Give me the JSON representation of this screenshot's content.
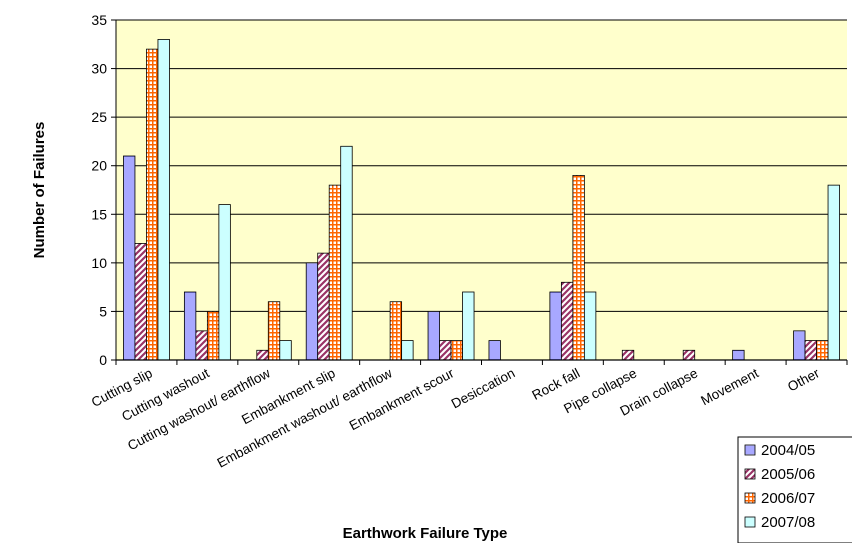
{
  "chart_data": {
    "type": "bar",
    "title": "",
    "xlabel": "Earthwork Failure Type",
    "ylabel": "Number of Failures",
    "ylim": [
      0,
      35
    ],
    "yticks": [
      0,
      5,
      10,
      15,
      20,
      25,
      30,
      35
    ],
    "grid": true,
    "legend_position": "bottom-right",
    "plot_background": "#ffffcc",
    "categories": [
      "Cutting slip",
      "Cutting washout",
      "Cutting washout/ earthflow",
      "Embankment slip",
      "Embankment washout/ earthflow",
      "Embankment scour",
      "Desiccation",
      "Rock fall",
      "Pipe collapse",
      "Drain collapse",
      "Movement",
      "Other"
    ],
    "series": [
      {
        "name": "2004/05",
        "color": "#9999ff",
        "pattern": "horizontal-lines",
        "values": [
          21,
          7,
          0,
          10,
          0,
          5,
          2,
          7,
          0,
          0,
          1,
          3
        ]
      },
      {
        "name": "2005/06",
        "color": "#993366",
        "pattern": "diagonal-lines",
        "values": [
          12,
          3,
          1,
          11,
          0,
          2,
          0,
          8,
          1,
          1,
          0,
          2
        ]
      },
      {
        "name": "2006/07",
        "color": "#ff6600",
        "pattern": "grid",
        "values": [
          32,
          5,
          6,
          18,
          6,
          2,
          0,
          19,
          0,
          0,
          0,
          2
        ]
      },
      {
        "name": "2007/08",
        "color": "#ccffff",
        "pattern": "solid",
        "values": [
          33,
          16,
          2,
          22,
          2,
          7,
          0,
          7,
          0,
          0,
          0,
          18
        ]
      }
    ]
  }
}
